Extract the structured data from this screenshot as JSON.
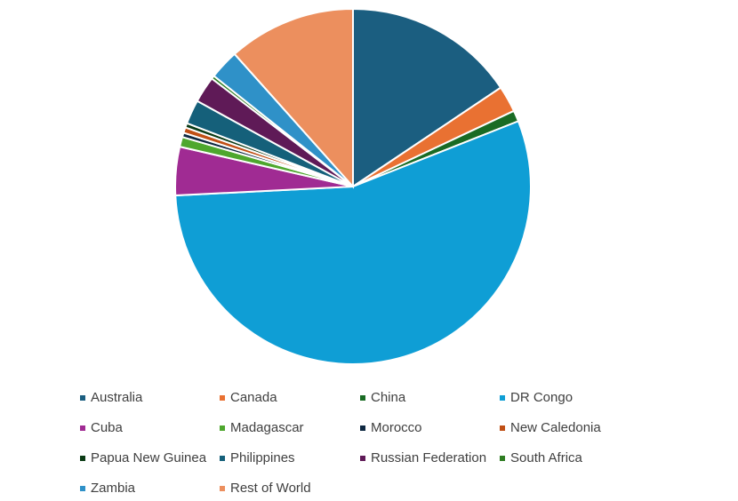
{
  "chart_data": {
    "type": "pie",
    "categories": [
      "Australia",
      "Canada",
      "China",
      "DR Congo",
      "Cuba",
      "Madagascar",
      "Morocco",
      "New Caledonia",
      "Papua New Guinea",
      "Philippines",
      "Russian Federation",
      "South Africa",
      "Zambia",
      "Rest of World"
    ],
    "values": [
      15.6,
      2.4,
      1.0,
      55.2,
      4.4,
      0.9,
      0.4,
      0.5,
      0.4,
      2.2,
      2.4,
      0.3,
      2.7,
      11.6
    ],
    "colors": [
      "#1b5e80",
      "#e97132",
      "#196b24",
      "#0f9ed5",
      "#a02b93",
      "#4ea72e",
      "#0e2841",
      "#c04f15",
      "#0b3b15",
      "#15607a",
      "#5f1a57",
      "#2e7d22",
      "#2f91c8",
      "#ec8f5e"
    ]
  }
}
